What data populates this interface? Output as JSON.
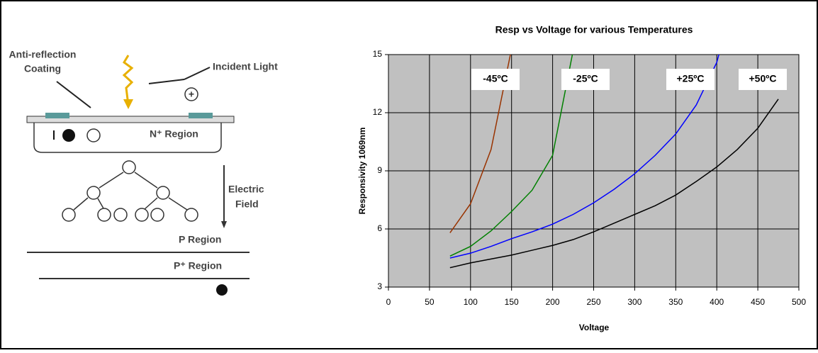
{
  "diagram": {
    "coating": [
      "Anti-reflection",
      "Coating"
    ],
    "light": "Incident Light",
    "n_region": "N⁺ Region",
    "field": [
      "Electric",
      "Field"
    ],
    "p_region": "P Region",
    "pplus_region": "P⁺ Region"
  },
  "chart_data": {
    "type": "line",
    "title": "Resp vs Voltage for various Temperatures",
    "x_label": "Voltage",
    "y_label": "Responsivity 1069nm",
    "x": [
      75,
      100,
      125,
      150,
      175,
      200,
      225,
      250,
      275,
      300,
      325,
      350,
      375,
      400,
      425,
      450,
      475,
      500
    ],
    "series": [
      {
        "name": "-45ºC",
        "color": "#993300",
        "values": [
          5.8,
          7.3,
          10.1,
          15.3,
          null,
          null,
          null,
          null,
          null,
          null,
          null,
          null,
          null,
          null,
          null,
          null,
          null,
          null
        ]
      },
      {
        "name": "-25ºC",
        "color": "#008000",
        "values": [
          4.6,
          5.1,
          5.9,
          6.9,
          8.0,
          9.8,
          15.2,
          null,
          null,
          null,
          null,
          null,
          null,
          null,
          null,
          null,
          null,
          null
        ]
      },
      {
        "name": "+25ºC",
        "color": "#0000ff",
        "values": [
          4.5,
          4.75,
          5.1,
          5.5,
          5.85,
          6.25,
          6.75,
          7.35,
          8.05,
          8.85,
          9.8,
          10.9,
          12.4,
          14.6,
          18.5,
          null,
          null,
          null
        ]
      },
      {
        "name": "+50ºC",
        "color": "#000000",
        "values": [
          4.0,
          4.25,
          4.45,
          4.65,
          4.9,
          5.15,
          5.45,
          5.85,
          6.3,
          6.75,
          7.2,
          7.75,
          8.45,
          9.2,
          10.1,
          11.2,
          12.7,
          null
        ]
      }
    ],
    "xlim": [
      0,
      500
    ],
    "xticks": [
      0,
      50,
      100,
      150,
      200,
      250,
      300,
      350,
      400,
      450,
      500
    ],
    "ylim": [
      3,
      15
    ],
    "yticks": [
      3,
      6,
      9,
      12,
      15
    ],
    "grid": true,
    "background": "#c0c0c0"
  }
}
